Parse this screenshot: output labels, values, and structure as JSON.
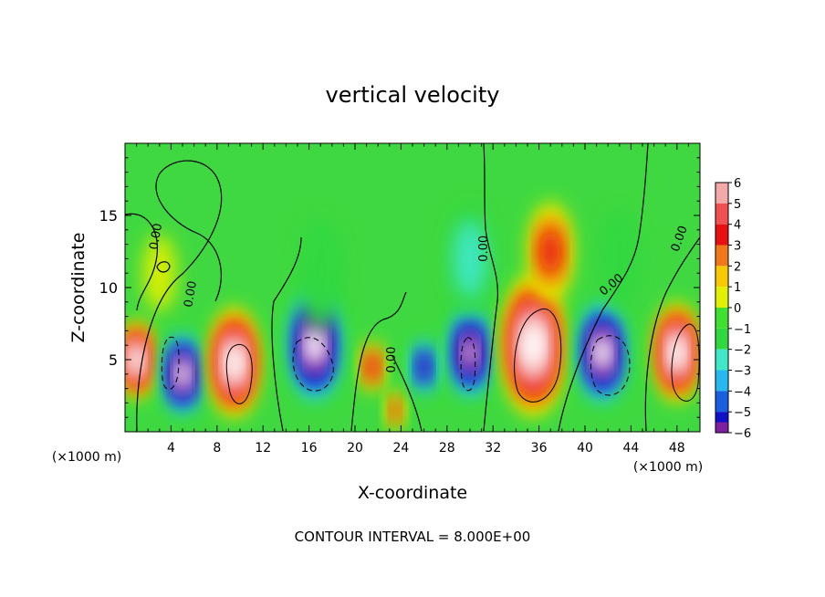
{
  "chart_data": {
    "type": "heatmap",
    "title": "vertical velocity",
    "xlabel": "X-coordinate",
    "ylabel": "Z-coordinate",
    "x_unit_left": "(×1000 m)",
    "x_unit_right": "(×1000 m)",
    "footer": "CONTOUR INTERVAL = 8.000E+00",
    "xlim": [
      0,
      50
    ],
    "ylim": [
      0,
      20
    ],
    "x_ticks": [
      4,
      8,
      12,
      16,
      20,
      24,
      28,
      32,
      36,
      40,
      44,
      48
    ],
    "x_tick_labels": [
      "4",
      "8",
      "12",
      "16",
      "20",
      "24",
      "28",
      "32",
      "36",
      "40",
      "44",
      "48"
    ],
    "y_ticks": [
      5,
      10,
      15
    ],
    "y_tick_labels": [
      "5",
      "10",
      "15"
    ],
    "colorbar": {
      "values": [
        6,
        5,
        4,
        3,
        2,
        1,
        0,
        -1,
        -2,
        -3,
        -4,
        -5,
        -6
      ],
      "labels": [
        "6",
        "5",
        "4",
        "3",
        "2",
        "1",
        "0",
        "−1",
        "−2",
        "−3",
        "−4",
        "−5",
        "−6"
      ],
      "colors": [
        "#f4a8a8",
        "#f05050",
        "#e81010",
        "#f07818",
        "#f8c800",
        "#e0f000",
        "#40e030",
        "#30d840",
        "#40e8c8",
        "#28b8f0",
        "#1860e0",
        "#1010c8",
        "#8020a0"
      ],
      "background": "#40d840"
    },
    "cells": [
      {
        "x": 1,
        "z": 5,
        "w": 0.7,
        "v": 9
      },
      {
        "x": 5,
        "z": 4,
        "w": 0.8,
        "v": -9
      },
      {
        "x": 9.5,
        "z": 4.8,
        "w": 1.0,
        "v": 9
      },
      {
        "x": 16.5,
        "z": 6,
        "w": 1.1,
        "v": -9
      },
      {
        "x": 21.5,
        "z": 4.5,
        "w": 0.45,
        "v": 5
      },
      {
        "x": 23.5,
        "z": 1.5,
        "w": 0.35,
        "v": 4
      },
      {
        "x": 26,
        "z": 4.5,
        "w": 0.55,
        "v": -6
      },
      {
        "x": 30,
        "z": 5.5,
        "w": 0.9,
        "v": -8
      },
      {
        "x": 35.5,
        "z": 6,
        "w": 1.3,
        "v": 10
      },
      {
        "x": 37,
        "z": 12.5,
        "w": 0.9,
        "v": 4
      },
      {
        "x": 41.5,
        "z": 5.5,
        "w": 1.0,
        "v": -9
      },
      {
        "x": 48,
        "z": 5.5,
        "w": 0.9,
        "v": 9
      },
      {
        "x": 30,
        "z": 12,
        "w": 1.0,
        "v": -2
      },
      {
        "x": 17,
        "z": 11,
        "w": 1.0,
        "v": -1.5
      },
      {
        "x": 43,
        "z": 12,
        "w": 0.9,
        "v": -1.5
      },
      {
        "x": 3,
        "z": 11,
        "w": 0.7,
        "v": 1
      }
    ],
    "contour_labels": [
      {
        "text": "0.00",
        "x": 3.0,
        "z": 13.5,
        "angle": -80
      },
      {
        "text": "0.00",
        "x": 6.0,
        "z": 9.5,
        "angle": -80
      },
      {
        "text": "0.00",
        "x": 23.5,
        "z": 5.0,
        "angle": -90
      },
      {
        "text": "0.00",
        "x": 31.5,
        "z": 12.7,
        "angle": -90
      },
      {
        "text": "0.00",
        "x": 42.5,
        "z": 10.0,
        "angle": -40
      },
      {
        "text": "0.00",
        "x": 48.5,
        "z": 13.3,
        "angle": -70
      }
    ]
  }
}
